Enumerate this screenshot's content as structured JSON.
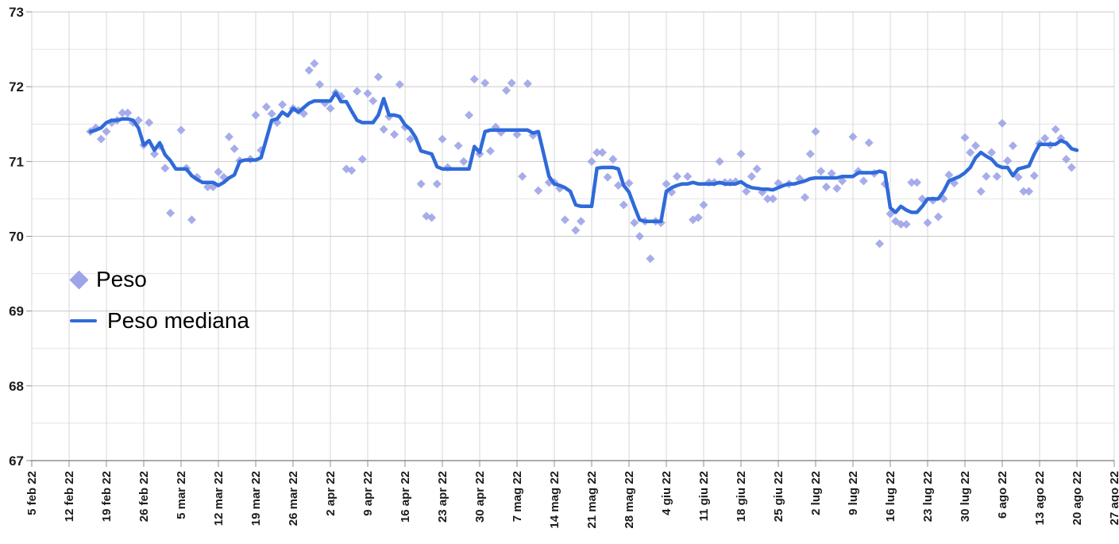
{
  "chart_data": {
    "type": "scatter",
    "title": "",
    "x_axis": {
      "start_label": "5 feb 22",
      "tick_interval_days": 7,
      "tick_labels": [
        "5 feb 22",
        "12 feb 22",
        "19 feb 22",
        "26 feb 22",
        "5 mar 22",
        "12 mar 22",
        "19 mar 22",
        "26 mar 22",
        "2 apr 22",
        "9 apr 22",
        "16 apr 22",
        "23 apr 22",
        "30 apr 22",
        "7 mag 22",
        "14 mag 22",
        "21 mag 22",
        "28 mag 22",
        "4 giu 22",
        "11 giu 22",
        "18 giu 22",
        "25 giu 22",
        "2 lug 22",
        "9 lug 22",
        "16 lug 22",
        "23 lug 22",
        "30 lug 22",
        "6 ago 22",
        "13 ago 22",
        "20 ago 22",
        "27 ago 22"
      ]
    },
    "y_axis": {
      "min": 67,
      "max": 73,
      "tick_labels": [
        "67",
        "68",
        "69",
        "70",
        "71",
        "72",
        "73"
      ],
      "minor_step": 0.5,
      "grid": true
    },
    "legend": {
      "position": "inside-left",
      "items": [
        "Peso",
        "Peso mediana"
      ]
    },
    "series": [
      {
        "name": "Peso",
        "type": "scatter",
        "marker": "diamond",
        "color": "#9da4e8",
        "points": [
          [
            11,
            71.4
          ],
          [
            12,
            71.45
          ],
          [
            13,
            71.3
          ],
          [
            14,
            71.4
          ],
          [
            15,
            71.52
          ],
          [
            16,
            71.55
          ],
          [
            17,
            71.65
          ],
          [
            18,
            71.65
          ],
          [
            19,
            71.52
          ],
          [
            20,
            71.55
          ],
          [
            21,
            71.22
          ],
          [
            22,
            71.52
          ],
          [
            23,
            71.1
          ],
          [
            24,
            71.21
          ],
          [
            25,
            70.91
          ],
          [
            26,
            70.31
          ],
          [
            28,
            71.42
          ],
          [
            29,
            70.91
          ],
          [
            30,
            70.22
          ],
          [
            31,
            70.79
          ],
          [
            33,
            70.66
          ],
          [
            34,
            70.66
          ],
          [
            35,
            70.86
          ],
          [
            36,
            70.79
          ],
          [
            37,
            71.33
          ],
          [
            38,
            71.17
          ],
          [
            39,
            71.01
          ],
          [
            41,
            71.03
          ],
          [
            42,
            71.62
          ],
          [
            43,
            71.15
          ],
          [
            44,
            71.73
          ],
          [
            45,
            71.64
          ],
          [
            46,
            71.52
          ],
          [
            47,
            71.76
          ],
          [
            49,
            71.71
          ],
          [
            50,
            71.68
          ],
          [
            51,
            71.64
          ],
          [
            52,
            72.22
          ],
          [
            53,
            72.31
          ],
          [
            54,
            72.03
          ],
          [
            55,
            71.78
          ],
          [
            56,
            71.71
          ],
          [
            57,
            71.92
          ],
          [
            58,
            71.87
          ],
          [
            59,
            70.9
          ],
          [
            60,
            70.88
          ],
          [
            61,
            71.94
          ],
          [
            62,
            71.03
          ],
          [
            63,
            71.91
          ],
          [
            64,
            71.81
          ],
          [
            65,
            72.13
          ],
          [
            66,
            71.43
          ],
          [
            67,
            71.6
          ],
          [
            68,
            71.36
          ],
          [
            69,
            72.03
          ],
          [
            70,
            71.46
          ],
          [
            71,
            71.3
          ],
          [
            73,
            70.7
          ],
          [
            74,
            70.27
          ],
          [
            75,
            70.25
          ],
          [
            76,
            70.7
          ],
          [
            77,
            71.3
          ],
          [
            78,
            70.92
          ],
          [
            80,
            71.21
          ],
          [
            81,
            71.0
          ],
          [
            82,
            71.62
          ],
          [
            83,
            72.1
          ],
          [
            84,
            71.1
          ],
          [
            85,
            72.05
          ],
          [
            86,
            71.14
          ],
          [
            87,
            71.46
          ],
          [
            88,
            71.39
          ],
          [
            89,
            71.95
          ],
          [
            90,
            72.05
          ],
          [
            91,
            71.36
          ],
          [
            92,
            70.8
          ],
          [
            93,
            72.04
          ],
          [
            94,
            71.35
          ],
          [
            95,
            70.61
          ],
          [
            97,
            70.72
          ],
          [
            98,
            70.72
          ],
          [
            99,
            70.64
          ],
          [
            100,
            70.22
          ],
          [
            102,
            70.08
          ],
          [
            103,
            70.2
          ],
          [
            105,
            71.0
          ],
          [
            106,
            71.12
          ],
          [
            107,
            71.12
          ],
          [
            108,
            70.79
          ],
          [
            109,
            71.03
          ],
          [
            110,
            70.68
          ],
          [
            111,
            70.42
          ],
          [
            112,
            70.71
          ],
          [
            113,
            70.18
          ],
          [
            114,
            70.0
          ],
          [
            115,
            70.2
          ],
          [
            116,
            69.7
          ],
          [
            117,
            70.2
          ],
          [
            118,
            70.18
          ],
          [
            119,
            70.7
          ],
          [
            120,
            70.59
          ],
          [
            121,
            70.8
          ],
          [
            123,
            70.8
          ],
          [
            124,
            70.22
          ],
          [
            125,
            70.25
          ],
          [
            126,
            70.42
          ],
          [
            127,
            70.72
          ],
          [
            128,
            70.72
          ],
          [
            129,
            71.0
          ],
          [
            130,
            70.72
          ],
          [
            131,
            70.72
          ],
          [
            132,
            70.73
          ],
          [
            133,
            71.1
          ],
          [
            134,
            70.6
          ],
          [
            135,
            70.8
          ],
          [
            136,
            70.9
          ],
          [
            137,
            70.59
          ],
          [
            138,
            70.5
          ],
          [
            139,
            70.5
          ],
          [
            140,
            70.71
          ],
          [
            142,
            70.7
          ],
          [
            144,
            70.77
          ],
          [
            145,
            70.52
          ],
          [
            146,
            71.1
          ],
          [
            147,
            71.4
          ],
          [
            148,
            70.87
          ],
          [
            149,
            70.66
          ],
          [
            150,
            70.84
          ],
          [
            151,
            70.64
          ],
          [
            152,
            70.74
          ],
          [
            154,
            71.33
          ],
          [
            155,
            70.87
          ],
          [
            156,
            70.74
          ],
          [
            157,
            71.25
          ],
          [
            158,
            70.84
          ],
          [
            159,
            69.9
          ],
          [
            160,
            70.7
          ],
          [
            161,
            70.3
          ],
          [
            162,
            70.2
          ],
          [
            163,
            70.16
          ],
          [
            164,
            70.16
          ],
          [
            165,
            70.72
          ],
          [
            166,
            70.72
          ],
          [
            167,
            70.5
          ],
          [
            168,
            70.18
          ],
          [
            169,
            70.48
          ],
          [
            170,
            70.26
          ],
          [
            171,
            70.5
          ],
          [
            172,
            70.82
          ],
          [
            173,
            70.71
          ],
          [
            175,
            71.32
          ],
          [
            176,
            71.12
          ],
          [
            177,
            71.21
          ],
          [
            178,
            70.6
          ],
          [
            179,
            70.8
          ],
          [
            180,
            71.12
          ],
          [
            181,
            70.8
          ],
          [
            182,
            71.51
          ],
          [
            183,
            71.01
          ],
          [
            184,
            71.21
          ],
          [
            185,
            70.79
          ],
          [
            186,
            70.6
          ],
          [
            187,
            70.6
          ],
          [
            188,
            70.81
          ],
          [
            189,
            71.24
          ],
          [
            190,
            71.31
          ],
          [
            191,
            71.22
          ],
          [
            192,
            71.43
          ],
          [
            193,
            71.31
          ],
          [
            194,
            71.03
          ],
          [
            195,
            70.92
          ]
        ]
      },
      {
        "name": "Peso mediana",
        "type": "line",
        "color": "#2f6ad9",
        "start_day": 11,
        "values": [
          71.4,
          71.42,
          71.45,
          71.52,
          71.55,
          71.55,
          71.57,
          71.57,
          71.55,
          71.45,
          71.22,
          71.28,
          71.15,
          71.25,
          71.09,
          71.01,
          70.9,
          70.9,
          70.9,
          70.81,
          70.76,
          70.72,
          70.72,
          70.72,
          70.68,
          70.72,
          70.78,
          70.82,
          71.0,
          71.02,
          71.02,
          71.02,
          71.05,
          71.3,
          71.55,
          71.57,
          71.66,
          71.61,
          71.71,
          71.66,
          71.72,
          71.78,
          71.81,
          71.81,
          71.81,
          71.81,
          71.92,
          71.8,
          71.8,
          71.67,
          71.55,
          71.52,
          71.52,
          71.52,
          71.62,
          71.84,
          71.62,
          71.62,
          71.6,
          71.49,
          71.43,
          71.32,
          71.14,
          71.12,
          71.1,
          70.93,
          70.9,
          70.9,
          70.9,
          70.9,
          70.9,
          70.9,
          71.2,
          71.12,
          71.4,
          71.42,
          71.42,
          71.42,
          71.42,
          71.42,
          71.42,
          71.42,
          71.42,
          71.38,
          71.4,
          71.1,
          70.8,
          70.7,
          70.68,
          70.65,
          70.6,
          70.42,
          70.4,
          70.4,
          70.4,
          70.91,
          70.92,
          70.92,
          70.92,
          70.9,
          70.68,
          70.59,
          70.4,
          70.22,
          70.2,
          70.2,
          70.2,
          70.2,
          70.6,
          70.65,
          70.68,
          70.7,
          70.7,
          70.72,
          70.7,
          70.7,
          70.7,
          70.7,
          70.72,
          70.7,
          70.7,
          70.7,
          70.73,
          70.68,
          70.65,
          70.64,
          70.63,
          70.63,
          70.62,
          70.65,
          70.68,
          70.7,
          70.7,
          70.72,
          70.74,
          70.77,
          70.78,
          70.78,
          70.78,
          70.78,
          70.78,
          70.8,
          70.8,
          70.8,
          70.85,
          70.85,
          70.85,
          70.85,
          70.87,
          70.85,
          70.38,
          70.32,
          70.4,
          70.35,
          70.32,
          70.32,
          70.4,
          70.5,
          70.5,
          70.5,
          70.6,
          70.74,
          70.77,
          70.8,
          70.85,
          70.92,
          71.05,
          71.12,
          71.07,
          71.03,
          70.95,
          70.92,
          70.92,
          70.81,
          70.9,
          70.92,
          70.94,
          71.1,
          71.23,
          71.23,
          71.23,
          71.23,
          71.28,
          71.25,
          71.17,
          71.15
        ]
      }
    ]
  },
  "colors": {
    "background": "#ffffff",
    "points": "#9da4e8",
    "line": "#2f6ad9",
    "grid_major": "#c9c9c9",
    "grid_minor": "#e4e4e4",
    "grid_vertical": "#d7d7d7",
    "axis": "#8f8f8f",
    "label": "#1c1c1c"
  }
}
